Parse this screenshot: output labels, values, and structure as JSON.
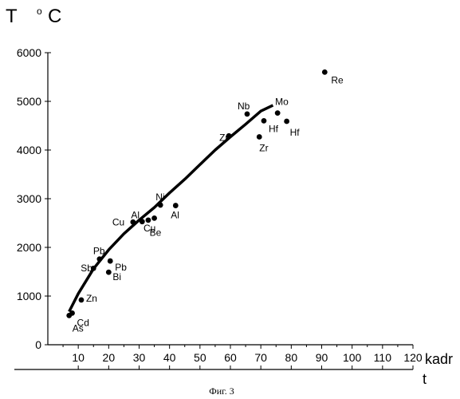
{
  "chart_data": {
    "type": "scatter",
    "title": "",
    "ylabel": "T",
    "ylabel_sup": "o",
    "ylabel_unit": "C",
    "xlabel": "kadr",
    "x2label": "t",
    "caption": "Фиг. 3",
    "xlim": [
      0,
      120
    ],
    "ylim": [
      0,
      6000
    ],
    "x_ticks": [
      10,
      20,
      30,
      40,
      50,
      60,
      70,
      80,
      90,
      100,
      110,
      120
    ],
    "x_tick_labels": [
      "10",
      "20",
      "30",
      "40",
      "50",
      "60",
      "70",
      "80",
      "90",
      "100",
      "110",
      "120"
    ],
    "y_ticks": [
      0,
      1000,
      2000,
      3000,
      4000,
      5000,
      6000
    ],
    "y_tick_labels": [
      "0",
      "1000",
      "2000",
      "3000",
      "4000",
      "5000",
      "6000"
    ],
    "grid": false,
    "points": [
      {
        "label": "As",
        "x": 7,
        "y": 600
      },
      {
        "label": "Cd",
        "x": 8,
        "y": 650
      },
      {
        "label": "Zn",
        "x": 11,
        "y": 920
      },
      {
        "label": "Sb",
        "x": 15,
        "y": 1570
      },
      {
        "label": "Pb",
        "x": 17,
        "y": 1760
      },
      {
        "label": "Bi",
        "x": 20,
        "y": 1490
      },
      {
        "label": "Pb",
        "x": 20.5,
        "y": 1720
      },
      {
        "label": "Cu",
        "x": 28,
        "y": 2520
      },
      {
        "label": "Al",
        "x": 31,
        "y": 2530
      },
      {
        "label": "Cu",
        "x": 33,
        "y": 2560
      },
      {
        "label": "Be",
        "x": 35,
        "y": 2600
      },
      {
        "label": "Ni",
        "x": 37,
        "y": 2870
      },
      {
        "label": "Al",
        "x": 42,
        "y": 2860
      },
      {
        "label": "Zr",
        "x": 59.5,
        "y": 4290
      },
      {
        "label": "Nb",
        "x": 65.5,
        "y": 4740
      },
      {
        "label": "Zr",
        "x": 69.5,
        "y": 4270
      },
      {
        "label": "Hf",
        "x": 71,
        "y": 4600
      },
      {
        "label": "Mo",
        "x": 75.5,
        "y": 4760
      },
      {
        "label": "Hf",
        "x": 78.5,
        "y": 4590
      },
      {
        "label": "Re",
        "x": 91,
        "y": 5600
      }
    ],
    "fit_line": {
      "x": [
        7,
        10,
        15,
        20,
        25,
        30,
        35,
        40,
        45,
        50,
        55,
        60,
        65,
        70,
        74
      ],
      "y": [
        680,
        1050,
        1560,
        1950,
        2280,
        2560,
        2820,
        3120,
        3400,
        3700,
        4000,
        4270,
        4530,
        4800,
        4920
      ]
    }
  }
}
